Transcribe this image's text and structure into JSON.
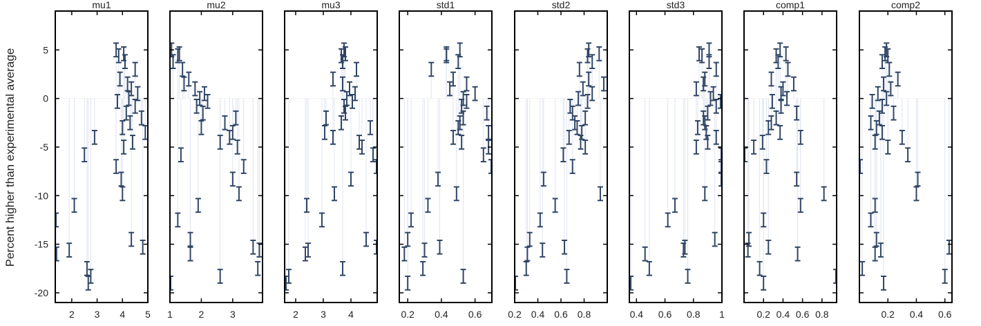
{
  "chart_data": {
    "type": "scatter",
    "ylabel": "Percent higher than experimental average",
    "ylim": [
      -21,
      9
    ],
    "yticks": [
      -20,
      -15,
      -10,
      -5,
      0,
      5
    ],
    "colors": {
      "errorbar": "#2f4565",
      "stem": "#dfe4f0",
      "frame": "#000000"
    },
    "y": [
      5.0,
      4.6,
      4.4,
      3.8,
      3.0,
      2.0,
      1.5,
      1.0,
      0.5,
      0.0,
      -0.3,
      -0.8,
      -1.5,
      -2.0,
      -2.5,
      -3.0,
      -3.5,
      -4.0,
      -4.5,
      -5.0,
      -5.8,
      -7.0,
      -8.3,
      -9.8,
      -11.0,
      -12.5,
      -14.5,
      -15.3,
      -15.6,
      -16.0,
      -17.5,
      -18.3,
      -19.0
    ],
    "err": 0.7,
    "panels": [
      {
        "title": "mu1",
        "xlim": [
          1.35,
          5.0
        ],
        "xticks": [
          2,
          3,
          4,
          5
        ],
        "tick_labels": [
          "2",
          "3",
          "4",
          "5"
        ],
        "x": [
          3.75,
          4.05,
          3.85,
          4.1,
          4.5,
          3.9,
          4.2,
          4.35,
          4.6,
          4.25,
          3.8,
          4.5,
          4.15,
          4.75,
          4.3,
          4.0,
          4.9,
          2.9,
          4.4,
          4.05,
          2.5,
          3.75,
          3.95,
          4.0,
          2.1,
          1.35,
          4.35,
          4.8,
          1.9,
          1.4,
          2.6,
          2.75,
          2.65
        ]
      },
      {
        "title": "mu2",
        "xlim": [
          1.0,
          3.95
        ],
        "xticks": [
          1,
          2,
          3
        ],
        "tick_labels": [
          "1",
          "2",
          "3"
        ],
        "x": [
          1.05,
          1.3,
          1.25,
          1.1,
          1.4,
          1.6,
          1.45,
          1.8,
          2.1,
          1.95,
          2.2,
          1.85,
          2.05,
          3.1,
          2.75,
          2.0,
          3.0,
          2.9,
          2.6,
          3.15,
          1.35,
          3.35,
          3.0,
          3.2,
          1.9,
          1.25,
          1.65,
          3.65,
          3.85,
          1.65,
          3.8,
          2.6,
          1.0
        ]
      },
      {
        "title": "mu3",
        "xlim": [
          1.6,
          4.95
        ],
        "xticks": [
          2,
          3,
          4
        ],
        "tick_labels": [
          "2",
          "3",
          "4"
        ],
        "x": [
          3.75,
          3.8,
          3.65,
          3.7,
          4.2,
          3.35,
          3.7,
          3.95,
          4.15,
          3.85,
          4.05,
          3.75,
          3.8,
          3.1,
          3.65,
          4.7,
          3.05,
          3.35,
          4.3,
          4.4,
          4.8,
          4.95,
          4.0,
          3.4,
          2.4,
          2.95,
          4.55,
          4.95,
          2.45,
          2.35,
          3.7,
          1.75,
          1.65
        ]
      },
      {
        "title": "std1",
        "xlim": [
          0.15,
          0.7
        ],
        "xticks": [
          0.2,
          0.4,
          0.6
        ],
        "tick_labels": [
          "0.2",
          "0.4",
          "0.6"
        ],
        "x": [
          0.51,
          0.43,
          0.43,
          0.5,
          0.34,
          0.47,
          0.55,
          0.45,
          0.6,
          0.53,
          0.55,
          0.52,
          0.67,
          0.53,
          0.51,
          0.5,
          0.68,
          0.47,
          0.52,
          0.68,
          0.65,
          0.7,
          0.38,
          0.49,
          0.32,
          0.22,
          0.2,
          0.39,
          0.3,
          0.18,
          0.29,
          0.53,
          0.2
        ]
      },
      {
        "title": "std2",
        "xlim": [
          0.2,
          1.0
        ],
        "xticks": [
          0.2,
          0.4,
          0.6,
          0.8
        ],
        "tick_labels": [
          "0.2",
          "0.4",
          "0.6",
          "0.8"
        ],
        "x": [
          0.84,
          0.93,
          0.83,
          0.87,
          0.76,
          0.84,
          0.97,
          0.79,
          0.87,
          0.75,
          0.83,
          0.68,
          0.7,
          0.81,
          0.72,
          0.74,
          0.78,
          0.67,
          0.77,
          0.81,
          0.62,
          0.7,
          0.45,
          0.94,
          0.55,
          0.42,
          0.33,
          0.63,
          0.44,
          0.31,
          0.3,
          0.65,
          0.2
        ]
      },
      {
        "title": "std3",
        "xlim": [
          0.35,
          1.0
        ],
        "xticks": [
          0.4,
          0.6,
          0.8,
          1
        ],
        "tick_labels": [
          "0.4",
          "0.6",
          "0.8",
          "1"
        ],
        "x": [
          0.91,
          0.84,
          0.86,
          0.91,
          0.96,
          0.88,
          0.87,
          0.82,
          0.94,
          0.92,
          0.99,
          0.96,
          0.9,
          0.87,
          0.88,
          0.83,
          0.89,
          0.96,
          0.9,
          0.82,
          1.0,
          1.0,
          1.0,
          0.88,
          0.67,
          0.62,
          0.95,
          0.74,
          0.73,
          0.46,
          0.49,
          0.76,
          0.36
        ]
      },
      {
        "title": "comp1",
        "xlim": [
          0.0,
          0.95
        ],
        "xticks": [
          0.2,
          0.4,
          0.6,
          0.8
        ],
        "tick_labels": [
          "0.2",
          "0.4",
          "0.6",
          "0.8"
        ],
        "x": [
          0.37,
          0.43,
          0.33,
          0.35,
          0.45,
          0.28,
          0.51,
          0.4,
          0.38,
          0.44,
          0.29,
          0.38,
          0.54,
          0.33,
          0.28,
          0.25,
          0.37,
          0.58,
          0.19,
          0.1,
          0.0,
          0.23,
          0.54,
          0.82,
          0.58,
          0.2,
          0.05,
          0.25,
          0.04,
          0.55,
          0.16,
          0.95,
          0.2
        ]
      },
      {
        "title": "comp2",
        "xlim": [
          0.0,
          0.65
        ],
        "xticks": [
          0.2,
          0.4,
          0.6
        ],
        "tick_labels": [
          "0.2",
          "0.4",
          "0.6"
        ],
        "x": [
          0.19,
          0.18,
          0.2,
          0.16,
          0.21,
          0.27,
          0.17,
          0.22,
          0.13,
          0.19,
          0.09,
          0.16,
          0.24,
          0.14,
          0.08,
          0.12,
          0.16,
          0.3,
          0.11,
          0.2,
          0.34,
          0.0,
          0.41,
          0.4,
          0.11,
          0.08,
          0.12,
          0.63,
          0.15,
          0.11,
          0.02,
          0.6,
          0.17
        ]
      }
    ]
  }
}
